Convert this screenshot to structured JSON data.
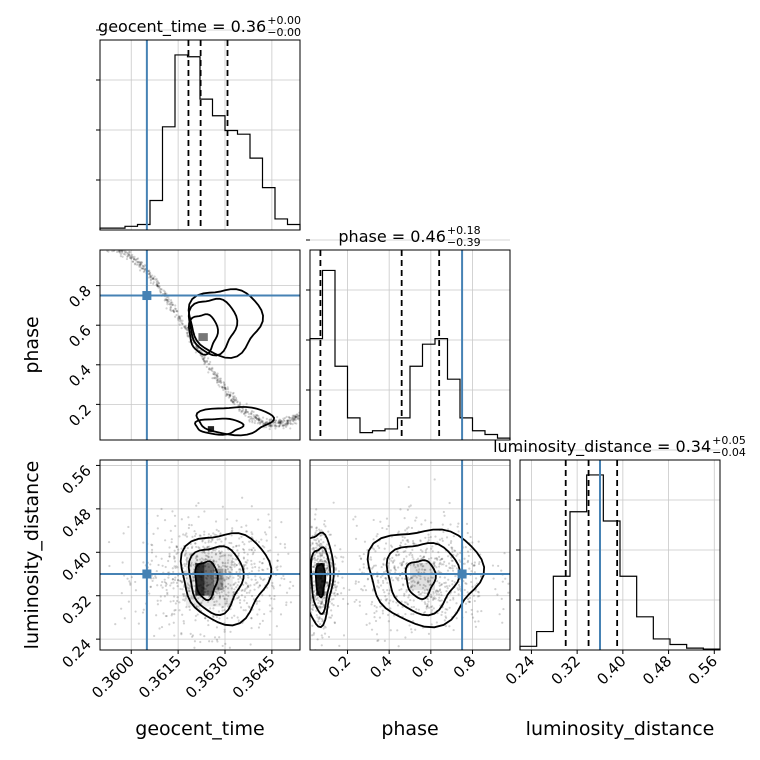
{
  "chart_data": {
    "type": "corner",
    "parameters": [
      "geocent_time",
      "phase",
      "luminosity_distance"
    ],
    "axis_labels": [
      "geocent_time",
      "phase",
      "luminosity_distance"
    ],
    "injection": {
      "geocent_time": 0.3605,
      "phase": 0.75,
      "luminosity_distance": 0.36,
      "color": "#4682b4"
    },
    "titles": [
      {
        "param": "geocent_time",
        "text": "geocent_time = 0.36",
        "sup": "+0.00",
        "sub": "−0.00"
      },
      {
        "param": "phase",
        "text": "phase = 0.46",
        "sup": "+0.18",
        "sub": "−0.39"
      },
      {
        "param": "luminosity_distance",
        "text": "luminosity_distance = 0.34",
        "sup": "+0.05",
        "sub": "−0.04"
      }
    ],
    "ranges": {
      "geocent_time": [
        0.359,
        0.3654
      ],
      "phase": [
        0.02,
        0.98
      ],
      "luminosity_distance": [
        0.22,
        0.57
      ]
    },
    "ticks": {
      "geocent_time": {
        "values": [
          0.36,
          0.3615,
          0.363,
          0.3645
        ],
        "labels": [
          "0.3600",
          "0.3615",
          "0.3630",
          "0.3645"
        ]
      },
      "phase": {
        "values": [
          0.2,
          0.4,
          0.6,
          0.8
        ],
        "labels": [
          "0.2",
          "0.4",
          "0.6",
          "0.8"
        ]
      },
      "luminosity_distance": {
        "values": [
          0.24,
          0.32,
          0.4,
          0.48,
          0.56
        ],
        "labels": [
          "0.24",
          "0.32",
          "0.40",
          "0.48",
          "0.56"
        ]
      }
    },
    "quantiles": {
      "geocent_time": [
        0.36183,
        0.36222,
        0.36308
      ],
      "phase": [
        0.07,
        0.46,
        0.64
      ],
      "luminosity_distance": [
        0.3,
        0.34,
        0.39
      ]
    },
    "histograms": {
      "geocent_time": [
        0.01,
        0.01,
        0.02,
        0.03,
        0.16,
        0.56,
        0.95,
        0.94,
        0.71,
        0.62,
        0.54,
        0.52,
        0.39,
        0.23,
        0.06,
        0.03
      ],
      "phase": [
        0.55,
        0.92,
        0.4,
        0.12,
        0.04,
        0.05,
        0.06,
        0.12,
        0.4,
        0.52,
        0.55,
        0.33,
        0.12,
        0.05,
        0.03,
        0.01
      ],
      "luminosity_distance": [
        0.02,
        0.1,
        0.4,
        0.75,
        0.95,
        0.7,
        0.4,
        0.18,
        0.06,
        0.03,
        0.01,
        0.005
      ]
    },
    "grid": true
  }
}
